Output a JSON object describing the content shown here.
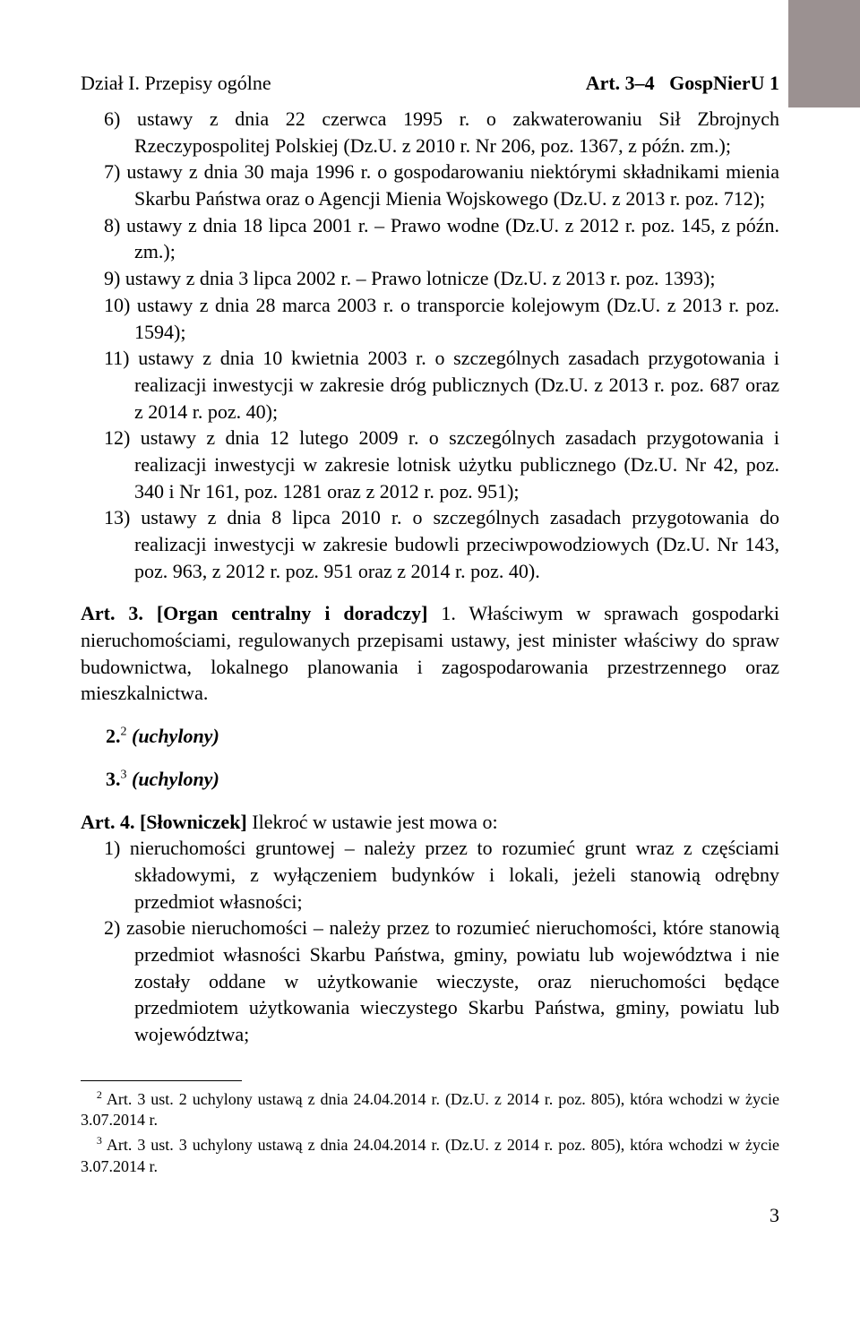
{
  "header": {
    "left": "Dział I. Przepisy ogólne",
    "art_ref": "Art. 3–4",
    "right_suffix": "GospNierU 1"
  },
  "list": {
    "item6": "6) ustawy z dnia 22 czerwca 1995 r. o zakwaterowaniu Sił Zbrojnych Rzeczypospolitej Polskiej (Dz.U. z 2010 r. Nr 206, poz. 1367, z późn. zm.);",
    "item7": "7) ustawy z dnia 30 maja 1996 r. o gospodarowaniu niektórymi składnikami mienia Skarbu Państwa oraz o Agencji Mienia Wojskowego (Dz.U. z 2013 r. poz. 712);",
    "item8": "8) ustawy z dnia 18 lipca 2001 r. – Prawo wodne (Dz.U. z 2012 r. poz. 145, z późn. zm.);",
    "item9": "9) ustawy z dnia 3 lipca 2002 r. – Prawo lotnicze (Dz.U. z 2013 r. poz. 1393);",
    "item10": "10) ustawy z dnia 28 marca 2003 r. o transporcie kolejowym (Dz.U. z 2013 r. poz. 1594);",
    "item11": "11) ustawy z dnia 10 kwietnia 2003 r. o szczególnych zasadach przygotowania i realizacji inwestycji w zakresie dróg publicznych (Dz.U. z 2013 r. poz. 687 oraz z 2014 r. poz. 40);",
    "item12": "12) ustawy z dnia 12 lutego 2009 r. o szczególnych zasadach przygotowania i realizacji inwestycji w zakresie lotnisk użytku publicznego (Dz.U. Nr 42, poz. 340 i Nr 161, poz. 1281 oraz z 2012 r. poz. 951);",
    "item13": "13) ustawy z dnia 8 lipca 2010 r. o szczególnych zasadach przygotowania do realizacji inwestycji w zakresie budowli przeciwpowodziowych (Dz.U. Nr 143, poz. 963, z 2012 r. poz. 951 oraz z 2014 r. poz. 40)."
  },
  "art3": {
    "label": "Art. 3.",
    "title": "[Organ centralny i doradczy]",
    "text1": " 1. Właściwym w sprawach gospodarki nieruchomościami, regulowanych przepisami ustawy, jest minister właściwy do spraw budownictwa, lokalnego planowania i zagospodarowania przestrzennego oraz mieszkalnictwa.",
    "pt2_num": "2.",
    "pt2_sup": "2",
    "pt2_text": " (uchylony)",
    "pt3_num": "3.",
    "pt3_sup": "3",
    "pt3_text": " (uchylony)"
  },
  "art4": {
    "label": "Art. 4.",
    "title": "[Słowniczek]",
    "intro": " Ilekroć w ustawie jest mowa o:",
    "item1": "1) nieruchomości gruntowej – należy przez to rozumieć grunt wraz z częściami składowymi, z wyłączeniem budynków i lokali, jeżeli stanowią odrębny przedmiot własności;",
    "item2": "2) zasobie nieruchomości – należy przez to rozumieć nieruchomości, które stanowią przedmiot własności Skarbu Państwa, gminy, powiatu lub województwa i nie zostały oddane w użytkowanie wieczyste, oraz nieruchomości będące przedmiotem użytkowania wieczystego Skarbu Państwa, gminy, powiatu lub województwa;"
  },
  "footnotes": {
    "fn2_sup": "2",
    "fn2_text": " Art. 3 ust. 2 uchylony ustawą z dnia 24.04.2014 r. (Dz.U. z 2014 r. poz. 805), która wchodzi w życie 3.07.2014 r.",
    "fn3_sup": "3",
    "fn3_text": " Art. 3 ust. 3 uchylony ustawą z dnia 24.04.2014 r. (Dz.U. z 2014 r. poz. 805), która wchodzi w życie 3.07.2014 r."
  },
  "page_number": "3",
  "colors": {
    "background": "#ffffff",
    "text": "#000000",
    "tab": "#9b9191"
  },
  "fonts": {
    "body_family": "Times New Roman",
    "body_size_pt": 11,
    "footnote_size_pt": 9
  }
}
